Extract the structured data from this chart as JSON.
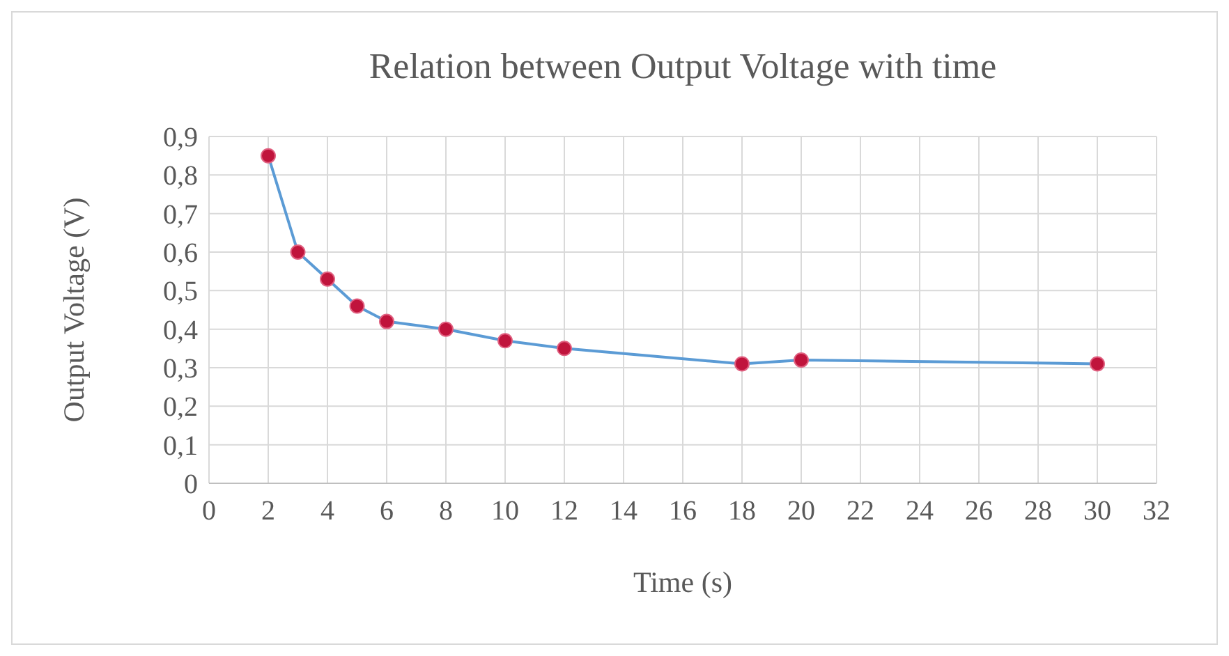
{
  "chart_data": {
    "type": "line",
    "title": "Relation between Output Voltage with time",
    "xlabel": "Time (s)",
    "ylabel": "Output Voltage (V)",
    "x": [
      2,
      3,
      4,
      5,
      6,
      8,
      10,
      12,
      18,
      20,
      30
    ],
    "series": [
      {
        "color": "#5b9bd5",
        "values": [
          0.85,
          0.6,
          0.53,
          0.46,
          0.42,
          0.4,
          0.37,
          0.35,
          0.31,
          0.32,
          0.31
        ]
      }
    ],
    "xlim": [
      0,
      32
    ],
    "xticks": [
      0,
      2,
      4,
      6,
      8,
      10,
      12,
      14,
      16,
      18,
      20,
      22,
      24,
      26,
      28,
      30,
      32
    ],
    "ylim": [
      0,
      0.9
    ],
    "yticks": [
      0,
      {
        "value": 0.1,
        "label": "0,1"
      },
      {
        "value": 0.2,
        "label": "0,2"
      },
      {
        "value": 0.3,
        "label": "0,3"
      },
      {
        "value": 0.4,
        "label": "0,4"
      },
      {
        "value": 0.5,
        "label": "0,5"
      },
      {
        "value": 0.6,
        "label": "0,6"
      },
      {
        "value": 0.7,
        "label": "0,7"
      },
      {
        "value": 0.8,
        "label": "0,8"
      },
      {
        "value": 0.9,
        "label": "0,9"
      }
    ],
    "grid": true,
    "marker": "circle",
    "line_style": "solid"
  }
}
